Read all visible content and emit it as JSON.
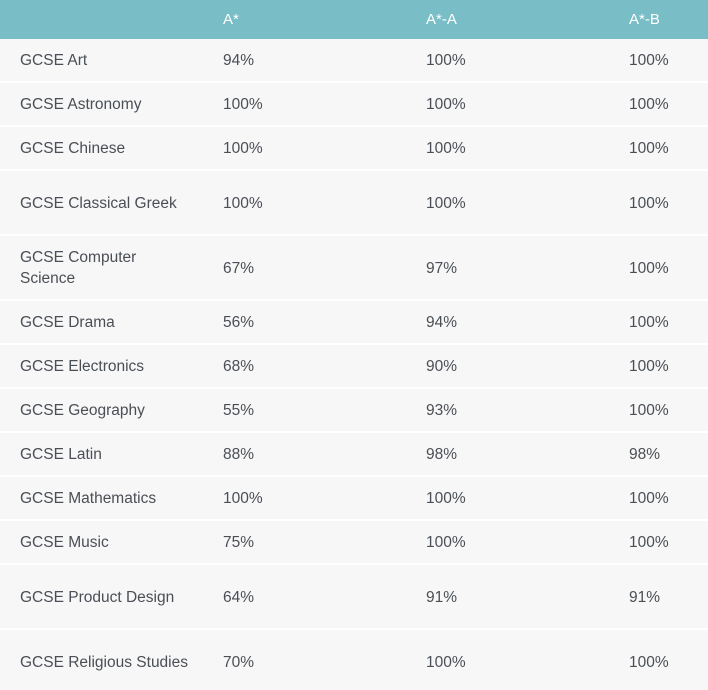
{
  "table": {
    "headers": [
      "",
      "A*",
      "A*-A",
      "A*-B"
    ],
    "rows": [
      {
        "subject": "GCSE Art",
        "a_star": "94%",
        "a_star_a": "100%",
        "a_star_b": "100%"
      },
      {
        "subject": "GCSE Astronomy",
        "a_star": "100%",
        "a_star_a": "100%",
        "a_star_b": "100%"
      },
      {
        "subject": "GCSE Chinese",
        "a_star": "100%",
        "a_star_a": "100%",
        "a_star_b": "100%"
      },
      {
        "subject": "GCSE Classical Greek",
        "a_star": "100%",
        "a_star_a": "100%",
        "a_star_b": "100%"
      },
      {
        "subject": "GCSE Computer Science",
        "a_star": "67%",
        "a_star_a": "97%",
        "a_star_b": "100%"
      },
      {
        "subject": "GCSE Drama",
        "a_star": "56%",
        "a_star_a": "94%",
        "a_star_b": "100%"
      },
      {
        "subject": "GCSE Electronics",
        "a_star": "68%",
        "a_star_a": "90%",
        "a_star_b": "100%"
      },
      {
        "subject": "GCSE Geography",
        "a_star": "55%",
        "a_star_a": "93%",
        "a_star_b": "100%"
      },
      {
        "subject": "GCSE Latin",
        "a_star": "88%",
        "a_star_a": "98%",
        "a_star_b": "98%"
      },
      {
        "subject": "GCSE Mathematics",
        "a_star": "100%",
        "a_star_a": "100%",
        "a_star_b": "100%"
      },
      {
        "subject": "GCSE Music",
        "a_star": "75%",
        "a_star_a": "100%",
        "a_star_b": "100%"
      },
      {
        "subject": "GCSE Product Design",
        "a_star": "64%",
        "a_star_a": "91%",
        "a_star_b": "91%"
      },
      {
        "subject": "GCSE Religious Studies",
        "a_star": "70%",
        "a_star_a": "100%",
        "a_star_b": "100%"
      }
    ]
  },
  "colors": {
    "header_bg": "#79bdc6",
    "row_bg": "#f7f7f7",
    "text": "#4a4f55"
  }
}
